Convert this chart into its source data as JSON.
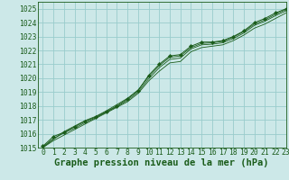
{
  "title": "Graphe pression niveau de la mer (hPa)",
  "bg_color": "#cce8e8",
  "grid_color": "#99cccc",
  "line_color": "#1a5c1a",
  "marker_color": "#1a5c1a",
  "xlim": [
    -0.5,
    23
  ],
  "ylim": [
    1015,
    1025.5
  ],
  "xticks": [
    0,
    1,
    2,
    3,
    4,
    5,
    6,
    7,
    8,
    9,
    10,
    11,
    12,
    13,
    14,
    15,
    16,
    17,
    18,
    19,
    20,
    21,
    22,
    23
  ],
  "yticks": [
    1015,
    1016,
    1017,
    1018,
    1019,
    1020,
    1021,
    1022,
    1023,
    1024,
    1025
  ],
  "series1_x": [
    0,
    1,
    2,
    3,
    4,
    5,
    6,
    7,
    8,
    9,
    10,
    11,
    12,
    13,
    14,
    15,
    16,
    17,
    18,
    19,
    20,
    21,
    22,
    23
  ],
  "series1_y": [
    1015.1,
    1015.8,
    1016.1,
    1016.5,
    1016.9,
    1017.2,
    1017.6,
    1018.0,
    1018.5,
    1019.1,
    1020.2,
    1021.0,
    1021.6,
    1021.7,
    1022.3,
    1022.6,
    1022.6,
    1022.7,
    1023.0,
    1023.4,
    1024.0,
    1024.3,
    1024.7,
    1025.0
  ],
  "series2_x": [
    0,
    1,
    2,
    3,
    4,
    5,
    6,
    7,
    8,
    9,
    10,
    11,
    12,
    13,
    14,
    15,
    16,
    17,
    18,
    19,
    20,
    21,
    22,
    23
  ],
  "series2_y": [
    1015.0,
    1015.5,
    1015.9,
    1016.3,
    1016.7,
    1017.1,
    1017.5,
    1017.9,
    1018.3,
    1018.9,
    1019.8,
    1020.5,
    1021.1,
    1021.2,
    1021.9,
    1022.2,
    1022.3,
    1022.4,
    1022.7,
    1023.1,
    1023.6,
    1023.9,
    1024.3,
    1024.7
  ],
  "series3_x": [
    0,
    1,
    2,
    3,
    4,
    5,
    6,
    7,
    8,
    9,
    10,
    11,
    12,
    13,
    14,
    15,
    16,
    17,
    18,
    19,
    20,
    21,
    22,
    23
  ],
  "series3_y": [
    1015.05,
    1015.65,
    1016.05,
    1016.4,
    1016.8,
    1017.15,
    1017.55,
    1017.95,
    1018.4,
    1019.0,
    1019.95,
    1020.75,
    1021.35,
    1021.45,
    1022.1,
    1022.4,
    1022.45,
    1022.55,
    1022.85,
    1023.25,
    1023.8,
    1024.1,
    1024.5,
    1024.85
  ],
  "series4_x": [
    0,
    1,
    2,
    3,
    4,
    5,
    6,
    7,
    8,
    9,
    10,
    11,
    12,
    13,
    14,
    15,
    16,
    17,
    18,
    19,
    20,
    21,
    22,
    23
  ],
  "series4_y": [
    1015.0,
    1015.6,
    1016.15,
    1016.55,
    1016.95,
    1017.25,
    1017.65,
    1018.1,
    1018.55,
    1019.15,
    1020.1,
    1020.9,
    1021.5,
    1021.6,
    1022.2,
    1022.5,
    1022.55,
    1022.65,
    1022.95,
    1023.35,
    1023.9,
    1024.2,
    1024.6,
    1024.95
  ],
  "tick_fontsize": 5.8,
  "title_fontsize": 7.5
}
